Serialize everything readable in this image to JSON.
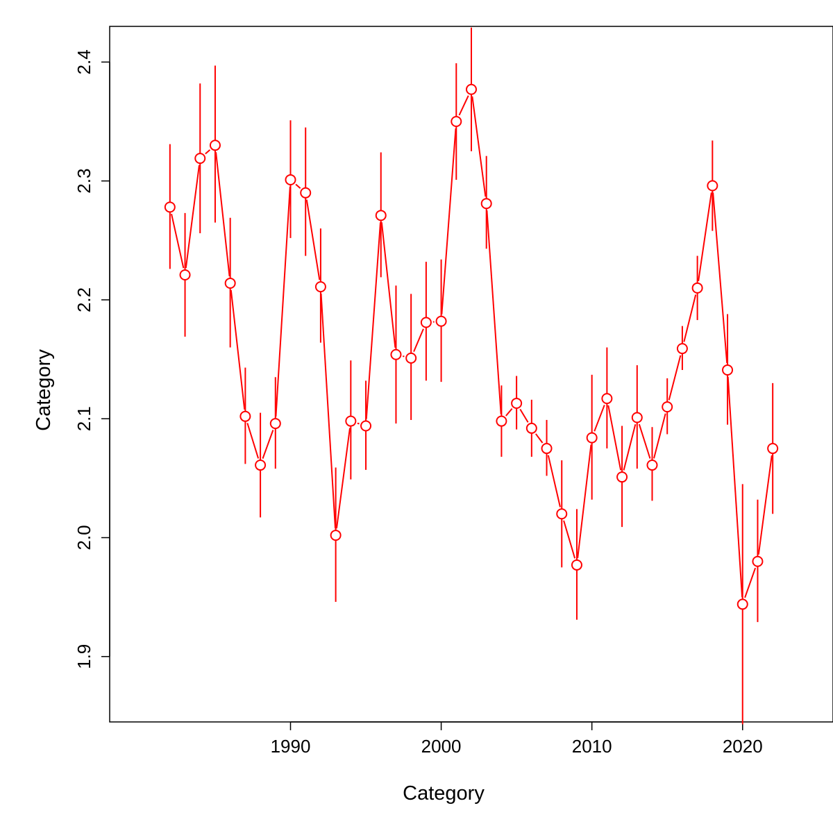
{
  "chart_data": {
    "type": "line",
    "title": "",
    "xlabel": "Category",
    "ylabel": "Category",
    "xlim": [
      1978,
      2026
    ],
    "ylim": [
      1.845,
      2.43
    ],
    "xticks": [
      1990,
      2000,
      2010,
      2020
    ],
    "yticks": [
      1.9,
      2.0,
      2.1,
      2.2,
      2.3,
      2.4
    ],
    "ytick_labels": [
      "1.9",
      "2.0",
      "2.1",
      "2.2",
      "2.3",
      "2.4"
    ],
    "grid": false,
    "legend": "none",
    "color": "#ff0000",
    "series": [
      {
        "x": [
          1982,
          1983,
          1984,
          1985,
          1986,
          1987,
          1988,
          1989,
          1990,
          1991,
          1992,
          1993,
          1994,
          1995,
          1996,
          1997,
          1998,
          1999,
          2000,
          2001,
          2002,
          2003,
          2004,
          2005,
          2006,
          2007,
          2008,
          2009,
          2010,
          2011,
          2012,
          2013,
          2014,
          2015,
          2016,
          2017,
          2018,
          2019,
          2020,
          2021,
          2022
        ],
        "y": [
          2.278,
          2.221,
          2.319,
          2.33,
          2.214,
          2.102,
          2.061,
          2.096,
          2.301,
          2.29,
          2.211,
          2.002,
          2.098,
          2.094,
          2.271,
          2.154,
          2.151,
          2.181,
          2.182,
          2.35,
          2.377,
          2.281,
          2.098,
          2.113,
          2.092,
          2.075,
          2.02,
          1.977,
          2.084,
          2.117,
          2.051,
          2.101,
          2.061,
          2.11,
          2.159,
          2.21,
          2.296,
          2.141,
          1.944,
          1.98,
          2.075
        ],
        "lower": [
          2.226,
          2.169,
          2.256,
          2.265,
          2.16,
          2.062,
          2.017,
          2.058,
          2.252,
          2.237,
          2.164,
          1.946,
          2.049,
          2.057,
          2.219,
          2.096,
          2.099,
          2.132,
          2.131,
          2.301,
          2.325,
          2.243,
          2.068,
          2.091,
          2.068,
          2.052,
          1.975,
          1.931,
          2.032,
          2.075,
          2.009,
          2.058,
          2.031,
          2.087,
          2.141,
          2.183,
          2.258,
          2.095,
          1.843,
          1.929,
          2.02
        ],
        "upper": [
          2.331,
          2.273,
          2.382,
          2.397,
          2.269,
          2.143,
          2.105,
          2.135,
          2.351,
          2.345,
          2.26,
          2.059,
          2.149,
          2.132,
          2.324,
          2.212,
          2.205,
          2.232,
          2.234,
          2.399,
          2.429,
          2.321,
          2.128,
          2.136,
          2.116,
          2.099,
          2.065,
          2.024,
          2.137,
          2.16,
          2.094,
          2.145,
          2.093,
          2.134,
          2.178,
          2.237,
          2.334,
          2.188,
          2.045,
          2.032,
          2.13
        ]
      }
    ]
  }
}
